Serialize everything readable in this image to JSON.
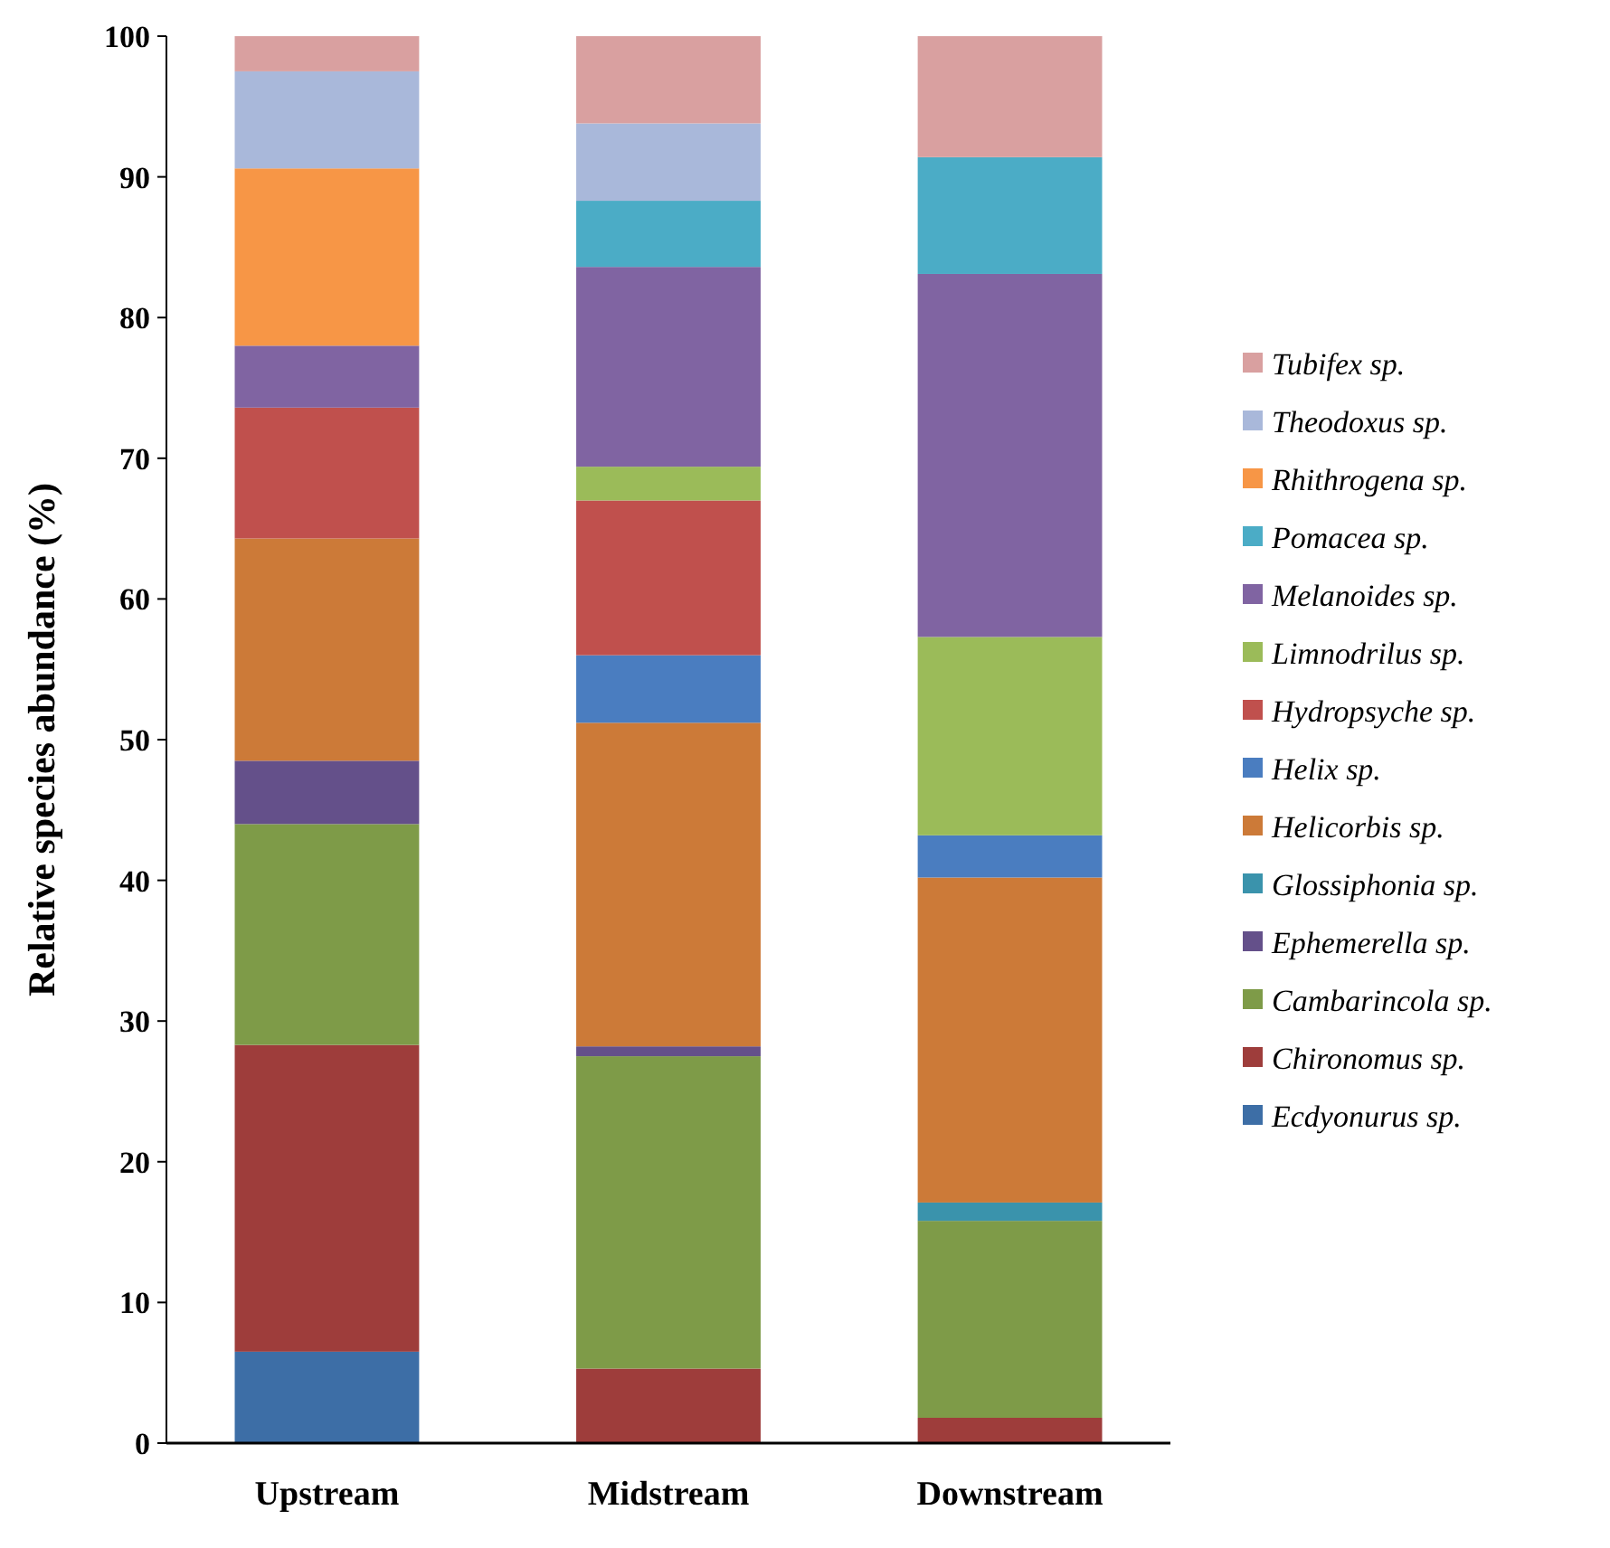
{
  "chart_data": {
    "type": "bar",
    "stacked": true,
    "ylabel": "Relative species abundance  (%)",
    "categories": [
      "Upstream",
      "Midstream",
      "Downstream"
    ],
    "ylim": [
      0,
      100
    ],
    "yticks": [
      0,
      10,
      20,
      30,
      40,
      50,
      60,
      70,
      80,
      90,
      100
    ],
    "grid": false,
    "legend": "right",
    "series": [
      {
        "name": "Ecdyonurus sp.",
        "color": "#3d6ea6",
        "values": [
          6.5,
          0,
          0
        ]
      },
      {
        "name": "Chironomus sp.",
        "color": "#9e3d3b",
        "values": [
          21.8,
          5.3,
          1.8
        ]
      },
      {
        "name": "Cambarincola sp.",
        "color": "#7e9b48",
        "values": [
          15.7,
          22.2,
          14
        ]
      },
      {
        "name": "Ephemerella sp.",
        "color": "#64508a",
        "values": [
          4.5,
          0.7,
          0
        ]
      },
      {
        "name": "Glossiphonia sp.",
        "color": "#3a93ac",
        "values": [
          0,
          0,
          1.3
        ]
      },
      {
        "name": "Helicorbis sp.",
        "color": "#cc7a38",
        "values": [
          15.8,
          23,
          23.1
        ]
      },
      {
        "name": "Helix sp.",
        "color": "#4a7dc0",
        "values": [
          0,
          4.8,
          3
        ]
      },
      {
        "name": "Hydropsyche sp.",
        "color": "#c0504d",
        "values": [
          9.3,
          11,
          0
        ]
      },
      {
        "name": "Limnodrilus sp.",
        "color": "#9bbb59",
        "values": [
          0,
          2.4,
          14.1
        ]
      },
      {
        "name": "Melanoides sp.",
        "color": "#8064a2",
        "values": [
          4.4,
          14.2,
          25.8
        ]
      },
      {
        "name": "Pomacea sp.",
        "color": "#4bacc6",
        "values": [
          0,
          4.7,
          8.3
        ]
      },
      {
        "name": "Rhithrogena sp.",
        "color": "#f79646",
        "values": [
          12.6,
          0,
          0
        ]
      },
      {
        "name": "Theodoxus sp.",
        "color": "#a9b8da",
        "values": [
          6.9,
          5.5,
          0
        ]
      },
      {
        "name": "Tubifex sp.",
        "color": "#d9a0a0",
        "values": [
          2.5,
          6.2,
          8.6
        ]
      }
    ]
  }
}
